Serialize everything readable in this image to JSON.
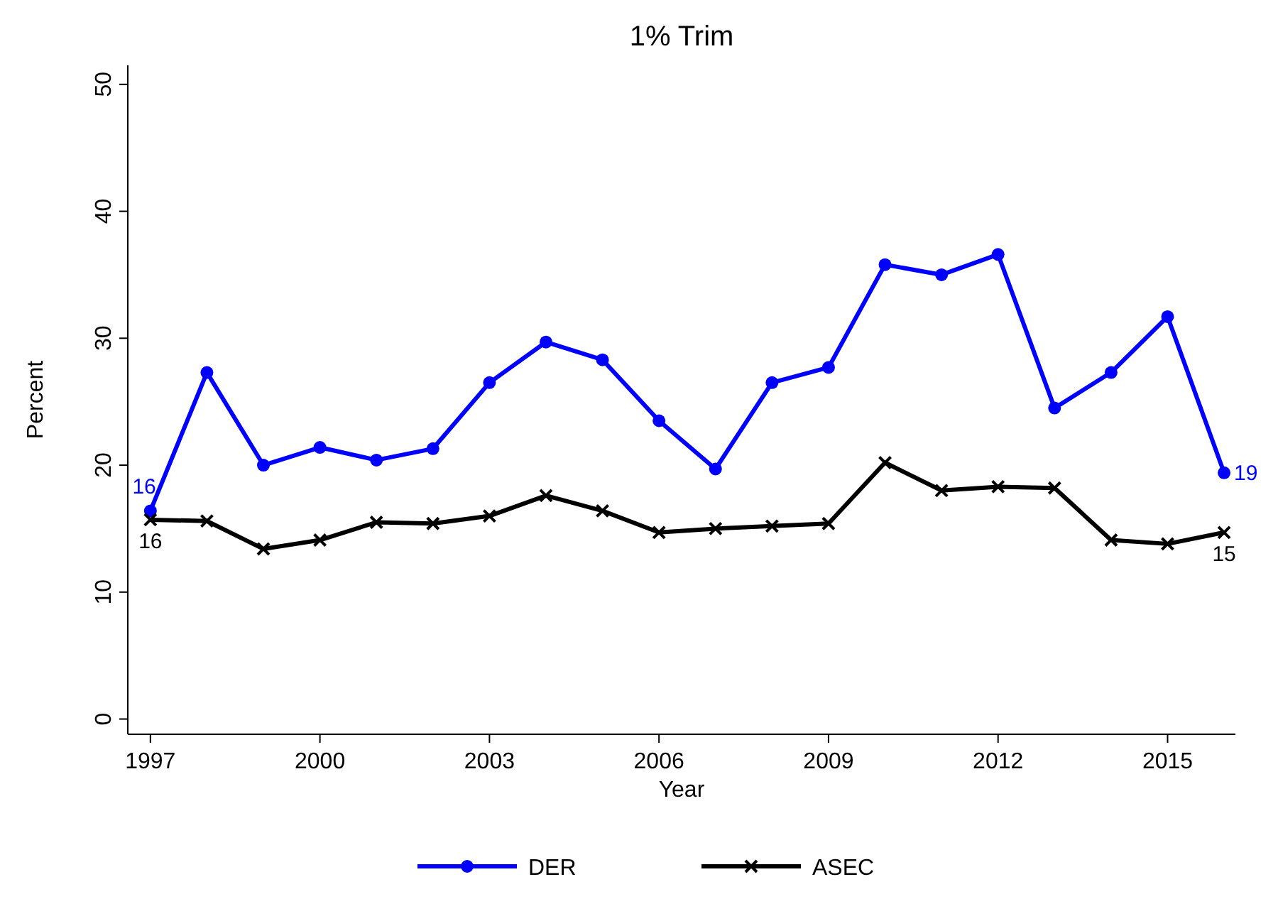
{
  "chart_data": {
    "type": "line",
    "title": "1% Trim",
    "xlabel": "Year",
    "ylabel": "Percent",
    "x": [
      1997,
      1998,
      1999,
      2000,
      2001,
      2002,
      2003,
      2004,
      2005,
      2006,
      2007,
      2008,
      2009,
      2010,
      2011,
      2012,
      2013,
      2014,
      2015,
      2016
    ],
    "series": [
      {
        "name": "DER",
        "color": "#0000ff",
        "marker": "circle",
        "values": [
          16.4,
          27.3,
          20.0,
          21.4,
          20.4,
          21.3,
          26.5,
          29.7,
          28.3,
          23.5,
          19.7,
          26.5,
          27.7,
          35.8,
          35.0,
          36.6,
          24.5,
          27.3,
          31.7,
          19.4
        ],
        "value_labels": [
          "16",
          null,
          null,
          null,
          null,
          null,
          null,
          null,
          null,
          null,
          null,
          null,
          null,
          null,
          null,
          null,
          null,
          null,
          null,
          "19"
        ]
      },
      {
        "name": "ASEC",
        "color": "#000000",
        "marker": "cross",
        "values": [
          15.7,
          15.6,
          13.4,
          14.1,
          15.5,
          15.4,
          16.0,
          17.6,
          16.4,
          14.7,
          15.0,
          15.2,
          15.4,
          20.2,
          18.0,
          18.3,
          18.2,
          14.1,
          13.8,
          14.7
        ],
        "value_labels": [
          "16",
          null,
          null,
          null,
          null,
          null,
          null,
          null,
          null,
          null,
          null,
          null,
          null,
          null,
          null,
          null,
          null,
          null,
          null,
          "15"
        ]
      }
    ],
    "xlim": [
      1996.6,
      2016.2
    ],
    "xticks": [
      1997,
      2000,
      2003,
      2006,
      2009,
      2012,
      2015
    ],
    "ylim": [
      -1.2,
      51.5
    ],
    "yticks": [
      0,
      10,
      20,
      30,
      40,
      50
    ],
    "grid": false,
    "legend": "bottom",
    "line_style": "solid"
  }
}
